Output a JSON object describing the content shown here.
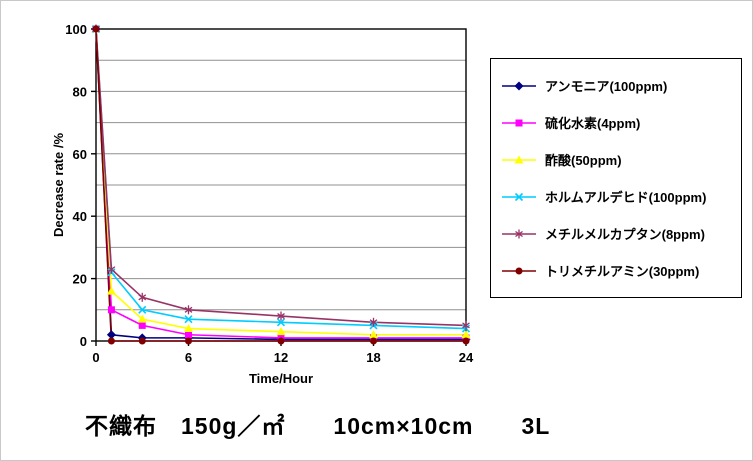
{
  "caption": "不織布　150g／㎡　　10cm×10cm　　3L",
  "chart_data": {
    "type": "line",
    "title": "",
    "xlabel": "Time/Hour",
    "ylabel": "Decrease rate /%",
    "xlim": [
      0,
      24
    ],
    "ylim": [
      0,
      100
    ],
    "x_ticks": [
      0,
      6,
      12,
      18,
      24
    ],
    "y_ticks": [
      0,
      20,
      40,
      60,
      80,
      100
    ],
    "grid": true,
    "grid_y_interval": 10,
    "legend_position": "right",
    "series": [
      {
        "name": "アンモニア(100ppm)",
        "color": "#000080",
        "marker": "diamond",
        "x": [
          0,
          1,
          3,
          6,
          12,
          18,
          24
        ],
        "values": [
          100,
          2,
          1,
          1,
          0.5,
          0.5,
          0.5
        ]
      },
      {
        "name": "硫化水素(4ppm)",
        "color": "#ff00ff",
        "marker": "square",
        "x": [
          0,
          1,
          3,
          6,
          12,
          18,
          24
        ],
        "values": [
          100,
          10,
          5,
          2,
          1,
          1,
          1
        ]
      },
      {
        "name": "酢酸(50ppm)",
        "color": "#ffff00",
        "marker": "triangle",
        "x": [
          0,
          1,
          3,
          6,
          12,
          18,
          24
        ],
        "values": [
          100,
          16,
          7,
          4,
          3,
          2,
          2
        ]
      },
      {
        "name": "ホルムアルデヒド(100ppm)",
        "color": "#00ccff",
        "marker": "x",
        "x": [
          0,
          1,
          3,
          6,
          12,
          18,
          24
        ],
        "values": [
          100,
          22,
          10,
          7,
          6,
          5,
          4
        ]
      },
      {
        "name": "メチルメルカプタン(8ppm)",
        "color": "#993366",
        "marker": "asterisk",
        "x": [
          0,
          1,
          3,
          6,
          12,
          18,
          24
        ],
        "values": [
          100,
          23,
          14,
          10,
          8,
          6,
          5
        ]
      },
      {
        "name": "トリメチルアミン(30ppm)",
        "color": "#800000",
        "marker": "circle",
        "x": [
          0,
          1,
          3,
          6,
          12,
          18,
          24
        ],
        "values": [
          100,
          0,
          0,
          0,
          0,
          0,
          0
        ]
      }
    ]
  }
}
